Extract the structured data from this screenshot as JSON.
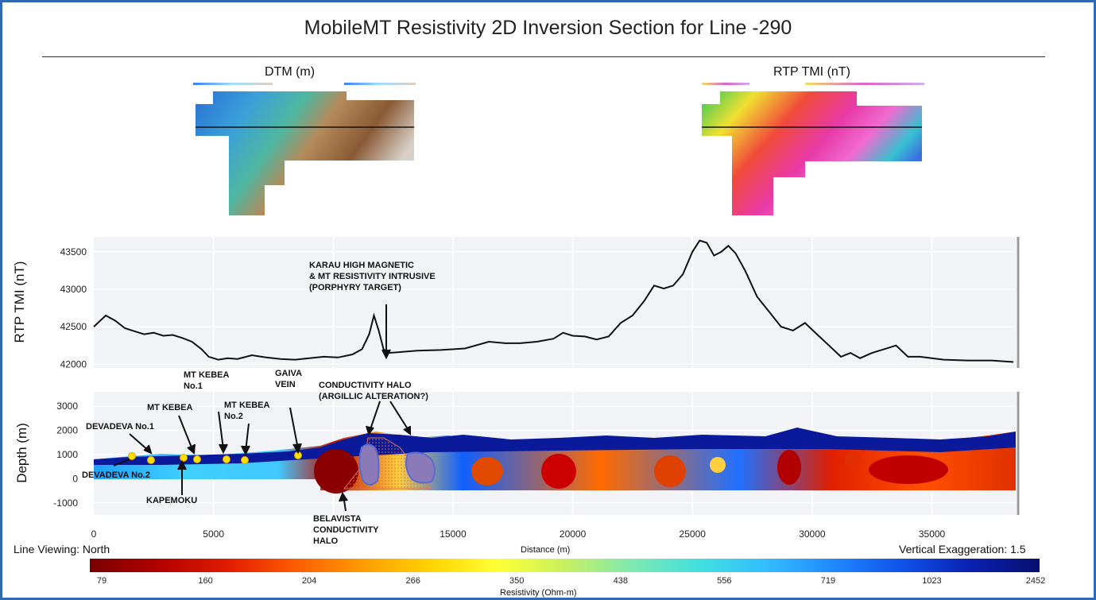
{
  "title": "MobileMT Resistivity 2D Inversion Section for Line -290",
  "dtm_map": {
    "label": "DTM (m)"
  },
  "tmi_map": {
    "label": "RTP TMI (nT)"
  },
  "footer": {
    "line_viewing": "Line Viewing: North",
    "vertical_exaggeration": "Vertical Exaggeration: 1.5",
    "distance_label": "Distance (m)"
  },
  "colorbar": {
    "label": "Resistivity (Ohm-m)",
    "ticks": [
      "79",
      "160",
      "204",
      "266",
      "350",
      "438",
      "556",
      "719",
      "1023",
      "2452"
    ],
    "colors": [
      "#7a0000",
      "#b30000",
      "#e01a00",
      "#ff5a00",
      "#ff9a00",
      "#ffd200",
      "#ffff33",
      "#c8f060",
      "#7fe8b0",
      "#40e0e0",
      "#33bbff",
      "#1f88ff",
      "#1050e8",
      "#0a20b0",
      "#061070"
    ]
  },
  "annotations": {
    "karau": [
      "KARAU HIGH MAGNETIC",
      "& MT RESISTIVITY  INTRUSIVE",
      "(PORPHYRY TARGET)"
    ],
    "mt_kebea_no1": [
      "MT KEBEA",
      "No.1"
    ],
    "mt_kebea": "MT KEBEA",
    "mt_kebea_no2": [
      "MT KEBEA",
      "No.2"
    ],
    "gaiva": [
      "GAIVA",
      "VEIN"
    ],
    "devadeva_no1": "DEVADEVA No.1",
    "devadeva_no2": "DEVADEVA No.2",
    "kapemoku": "KAPEMOKU",
    "conductivity_halo": [
      "CONDUCTIVITY HALO",
      "(ARGILLIC ALTERATION?)"
    ],
    "belavista": [
      "BELAVISTA",
      "CONDUCTIVITY",
      "HALO"
    ]
  },
  "chart_data": [
    {
      "type": "line",
      "ylabel": "RTP TMI (nT)",
      "xlim": [
        0,
        38500
      ],
      "ylim": [
        41950,
        43700
      ],
      "yticks": [
        42000,
        42500,
        43000,
        43500
      ],
      "xgrid": [
        5000,
        10000,
        15000,
        20000,
        25000,
        30000,
        35000
      ],
      "grid": true,
      "series": [
        {
          "x": [
            0,
            500,
            900,
            1300,
            1700,
            2100,
            2500,
            2900,
            3300,
            3700,
            4100,
            4500,
            4800,
            5200,
            5600,
            6000,
            6600,
            7200,
            7800,
            8400,
            9000,
            9600,
            10200,
            10800,
            11200,
            11500,
            11700,
            11900,
            12100,
            12300,
            12700,
            13500,
            14500,
            15500,
            16500,
            17200,
            17800,
            18500,
            19200,
            19600,
            20000,
            20500,
            21000,
            21500,
            22000,
            22500,
            23000,
            23400,
            23800,
            24200,
            24600,
            25000,
            25300,
            25600,
            25900,
            26200,
            26500,
            26800,
            27200,
            27700,
            28200,
            28700,
            29200,
            29700,
            30200,
            30700,
            31200,
            31600,
            32000,
            32500,
            33000,
            33500,
            34000,
            34500,
            35000,
            35500,
            36500,
            37500,
            38400
          ],
          "y": [
            42500,
            42650,
            42580,
            42480,
            42440,
            42400,
            42420,
            42380,
            42390,
            42350,
            42300,
            42200,
            42100,
            42060,
            42080,
            42070,
            42120,
            42090,
            42070,
            42060,
            42080,
            42100,
            42090,
            42130,
            42200,
            42400,
            42650,
            42450,
            42200,
            42150,
            42160,
            42180,
            42190,
            42210,
            42300,
            42280,
            42280,
            42300,
            42340,
            42420,
            42380,
            42370,
            42330,
            42370,
            42550,
            42650,
            42850,
            43050,
            43010,
            43050,
            43200,
            43500,
            43650,
            43620,
            43450,
            43500,
            43580,
            43480,
            43250,
            42900,
            42700,
            42500,
            42450,
            42550,
            42400,
            42250,
            42100,
            42150,
            42080,
            42150,
            42200,
            42250,
            42100,
            42100,
            42080,
            42060,
            42050,
            42050,
            42030
          ]
        }
      ]
    },
    {
      "type": "heatmap",
      "ylabel": "Depth (m)",
      "xlabel": "Distance (m)",
      "xlim": [
        0,
        38500
      ],
      "ylim": [
        -1500,
        3600
      ],
      "yticks": [
        -1000,
        0,
        1000,
        2000,
        3000
      ],
      "xticks": [
        0,
        5000,
        15000,
        20000,
        25000,
        30000,
        35000
      ],
      "grid": true,
      "colorbar_ticks": [
        79,
        160,
        204,
        266,
        350,
        438,
        556,
        719,
        1023,
        2452
      ]
    }
  ]
}
